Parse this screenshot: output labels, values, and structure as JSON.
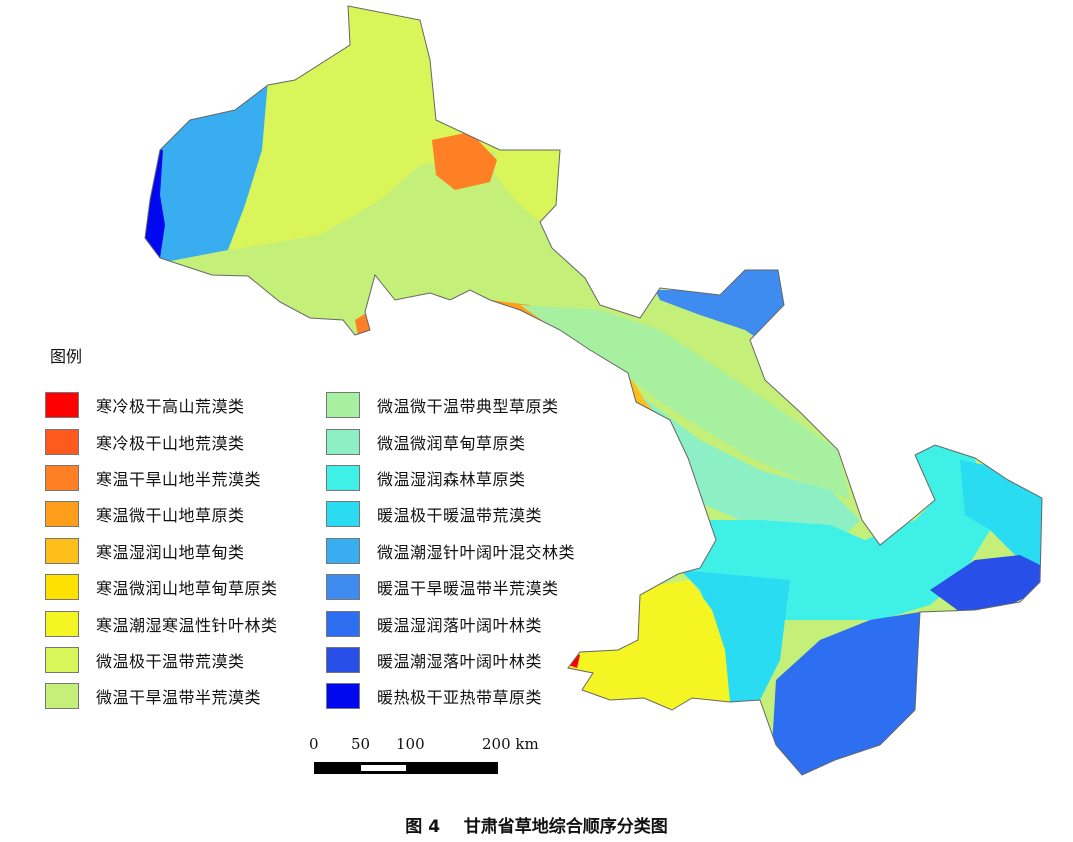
{
  "legend": {
    "title": "图例",
    "column1": [
      {
        "label": "寒冷极干高山荒漠类",
        "color": "#ff0000"
      },
      {
        "label": "寒冷极干山地荒漠类",
        "color": "#ff5a1e"
      },
      {
        "label": "寒温干旱山地半荒漠类",
        "color": "#ff7f24"
      },
      {
        "label": "寒温微干山地草原类",
        "color": "#ff9e1a"
      },
      {
        "label": "寒温湿润山地草甸类",
        "color": "#ffbf1a"
      },
      {
        "label": "寒温微润山地草甸草原类",
        "color": "#ffe100"
      },
      {
        "label": "寒温潮湿寒温性针叶林类",
        "color": "#f5f524"
      },
      {
        "label": "微温极干温带荒漠类",
        "color": "#d9f55a"
      },
      {
        "label": "微温干旱温带半荒漠类",
        "color": "#c4f07a"
      }
    ],
    "column2": [
      {
        "label": "微温微干温带典型草原类",
        "color": "#a6f0a0"
      },
      {
        "label": "微温微润草甸草原类",
        "color": "#8cf0c4"
      },
      {
        "label": "微温湿润森林草原类",
        "color": "#3ff0e6"
      },
      {
        "label": "暖温极干暖温带荒漠类",
        "color": "#29dcf2"
      },
      {
        "label": "微温潮湿针叶阔叶混交林类",
        "color": "#38aef0"
      },
      {
        "label": "暖温干旱暖温带半荒漠类",
        "color": "#3e8cf0"
      },
      {
        "label": "暖温湿润落叶阔叶林类",
        "color": "#2e6ef0"
      },
      {
        "label": "暖温潮湿落叶阔叶林类",
        "color": "#2850e8"
      },
      {
        "label": "暖热极干亚热带草原类",
        "color": "#0008f0"
      }
    ]
  },
  "scale_bar": {
    "labels": [
      "0",
      "50",
      "100",
      "200 km"
    ]
  },
  "caption": "图 4    甘肃省草地综合顺序分类图"
}
